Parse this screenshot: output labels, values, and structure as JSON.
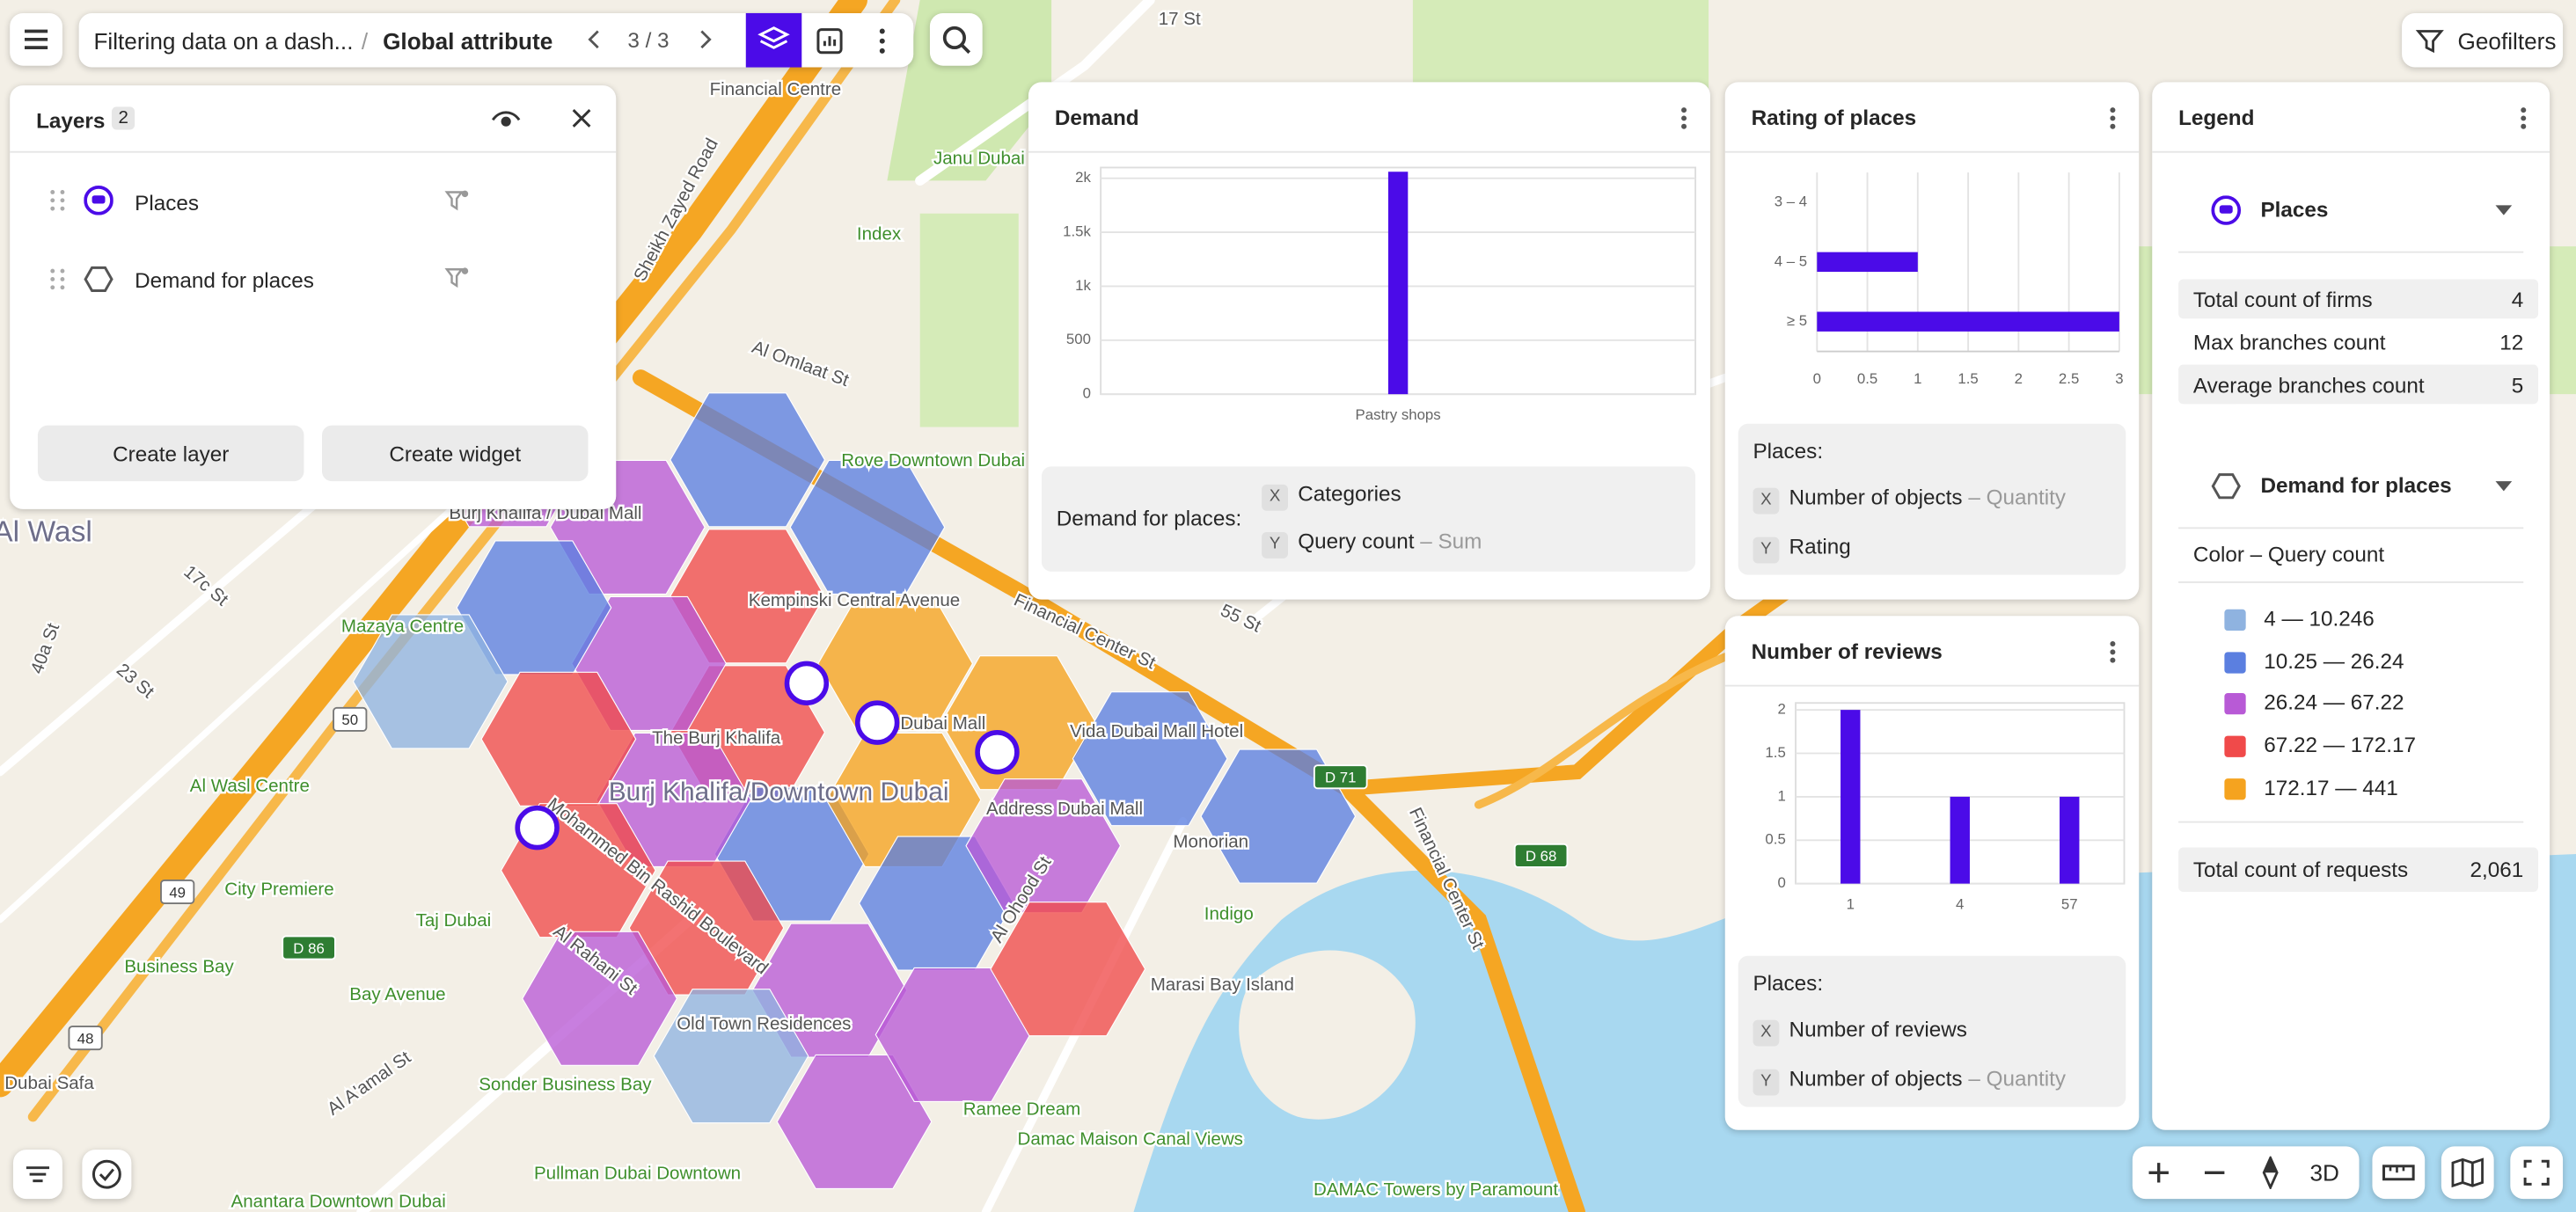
{
  "toolbar": {
    "breadcrumb": "Filtering data on a dash...",
    "separator": "/",
    "current": "Global attribute",
    "pager": "3 / 3",
    "geofilters": "Geofilters"
  },
  "layers": {
    "title": "Layers",
    "count": "2",
    "items": [
      "Places",
      "Demand for places"
    ],
    "buttons": [
      "Create layer",
      "Create widget"
    ]
  },
  "demand": {
    "title": "Demand",
    "chart": {
      "type": "bar",
      "categories": [
        "Pastry shops"
      ],
      "values": [
        2061
      ],
      "color": "#4b0be8",
      "ylim": [
        0,
        2100
      ],
      "yticks": [
        0,
        500,
        {
          "value": 1000,
          "label": "1k"
        },
        {
          "value": 1500,
          "label": "1.5k"
        },
        {
          "value": 2000,
          "label": "2k"
        }
      ],
      "grid": true
    },
    "source": "Demand for places:",
    "x_tag": "X",
    "x": "Categories",
    "y_tag": "Y",
    "y": "Query count",
    "y_agg": "– Sum"
  },
  "rating": {
    "title": "Rating of places",
    "chart": {
      "type": "barh",
      "categories": [
        "3 – 4",
        "4 – 5",
        "≥ 5"
      ],
      "values": [
        0,
        1,
        3
      ],
      "color": "#4b0be8",
      "xlim": [
        0,
        3
      ],
      "xticks": [
        0,
        0.5,
        1,
        1.5,
        2,
        2.5,
        3
      ],
      "grid": true
    },
    "source": "Places:",
    "x_tag": "X",
    "x": "Number of objects",
    "x_agg": "– Quantity",
    "y_tag": "Y",
    "y": "Rating"
  },
  "reviews": {
    "title": "Number of reviews",
    "chart": {
      "type": "bar",
      "categories": [
        "1",
        "4",
        "57"
      ],
      "values": [
        2,
        1,
        1
      ],
      "color": "#4b0be8",
      "ylim": [
        0,
        2.08
      ],
      "yticks": [
        0,
        0.5,
        1,
        1.5,
        2
      ],
      "grid": true
    },
    "source": "Places:",
    "x_tag": "X",
    "x": "Number of reviews",
    "y_tag": "Y",
    "y": "Number of objects",
    "y_agg": "– Quantity"
  },
  "legend": {
    "title": "Legend",
    "places": {
      "name": "Places",
      "stats": [
        {
          "label": "Total count of firms",
          "value": 4
        },
        {
          "label": "Max branches count",
          "value": 12
        },
        {
          "label": "Average branches count",
          "value": 5
        }
      ]
    },
    "demand": {
      "name": "Demand for places",
      "color_by": "Color – Query count",
      "ranges": [
        {
          "label": "4 — 10.246",
          "color": "#8fb3e0"
        },
        {
          "label": "10.25 — 26.24",
          "color": "#5b7fe0"
        },
        {
          "label": "26.24 — 67.22",
          "color": "#b85ad6"
        },
        {
          "label": "67.22 — 172.17",
          "color": "#f04a4a"
        },
        {
          "label": "172.17 — 441",
          "color": "#f5a31f"
        }
      ],
      "total_label": "Total count of requests",
      "total": "2,061"
    }
  },
  "map": {
    "labels": [
      "Financial Centre",
      "Janu Dubai",
      "Index",
      "Sheikh Zayed Road",
      "Al Omlaat St",
      "Rove Downtown Dubai",
      "Al Wasl",
      "Mazaya Centre",
      "Burj Khalifa / Dubai Mall",
      "Kempinski Central Avenue",
      "The Burj Khalifa",
      "Dubai Mall",
      "Vida Dubai Mall Hotel",
      "Burj Khalifa/Downtown Dubai",
      "Address Dubai Mall",
      "Financial Center St",
      "Al Wasl Centre",
      "Monorian",
      "City Premiere",
      "Taj Dubai",
      "Indigo",
      "Business Bay",
      "Bay Avenue",
      "Marasi Bay Island",
      "Old Town Residences",
      "Sonder Business Bay",
      "Ramee Dream",
      "Damac Maison Canal Views",
      "Pullman Dubai Downtown",
      "DAMAC Towers by Paramount",
      "Anantara Downtown Dubai",
      "Mohammed Bin Rashid Boulevard",
      "Al Rahani St",
      "Al Ohood St",
      "Al A'amal St",
      "Financial Center St",
      "17c St",
      "23 St",
      "40a St",
      "55 St",
      "Dubai Safa",
      "17 St"
    ],
    "shields": [
      "50",
      "49",
      "48",
      "D 71",
      "D 68",
      "D 86"
    ],
    "mode_3d": "3D"
  }
}
